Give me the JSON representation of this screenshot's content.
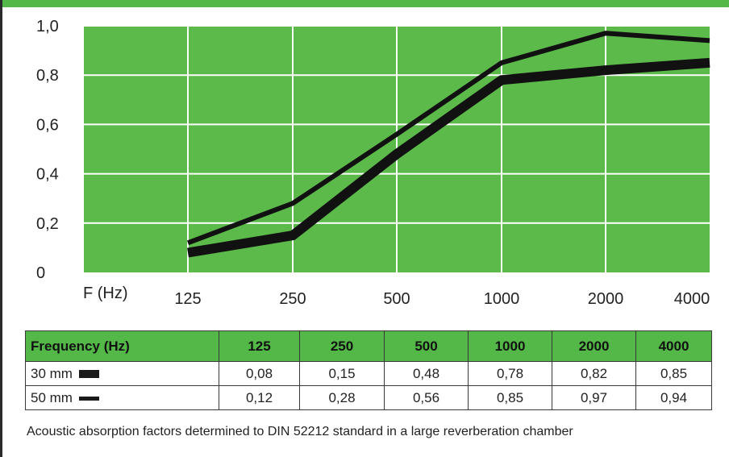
{
  "colors": {
    "plot_bg": "#5cba4a",
    "header_bg": "#53b847",
    "grid": "#ffffff",
    "line": "#111111"
  },
  "chart_data": {
    "type": "line",
    "x_label": "F (Hz)",
    "categories": [
      "125",
      "250",
      "500",
      "1000",
      "2000",
      "4000"
    ],
    "y_ticks": [
      "0",
      "0,2",
      "0,4",
      "0,6",
      "0,8",
      "1,0"
    ],
    "ylim": [
      0,
      1.0
    ],
    "grid": true,
    "series": [
      {
        "name": "30 mm",
        "values": [
          0.08,
          0.15,
          0.48,
          0.78,
          0.82,
          0.85
        ],
        "style": "thick"
      },
      {
        "name": "50 mm",
        "values": [
          0.12,
          0.28,
          0.56,
          0.85,
          0.97,
          0.94
        ],
        "style": "thin"
      }
    ]
  },
  "table": {
    "header": [
      "Frequency (Hz)",
      "125",
      "250",
      "500",
      "1000",
      "2000",
      "4000"
    ],
    "rows": [
      {
        "label": "30 mm",
        "values": [
          "0,08",
          "0,15",
          "0,48",
          "0,78",
          "0,82",
          "0,85"
        ]
      },
      {
        "label": "50 mm",
        "values": [
          "0,12",
          "0,28",
          "0,56",
          "0,85",
          "0,97",
          "0,94"
        ]
      }
    ]
  },
  "caption": "Acoustic absorption factors determined to DIN 52212 standard in a large reverberation chamber"
}
